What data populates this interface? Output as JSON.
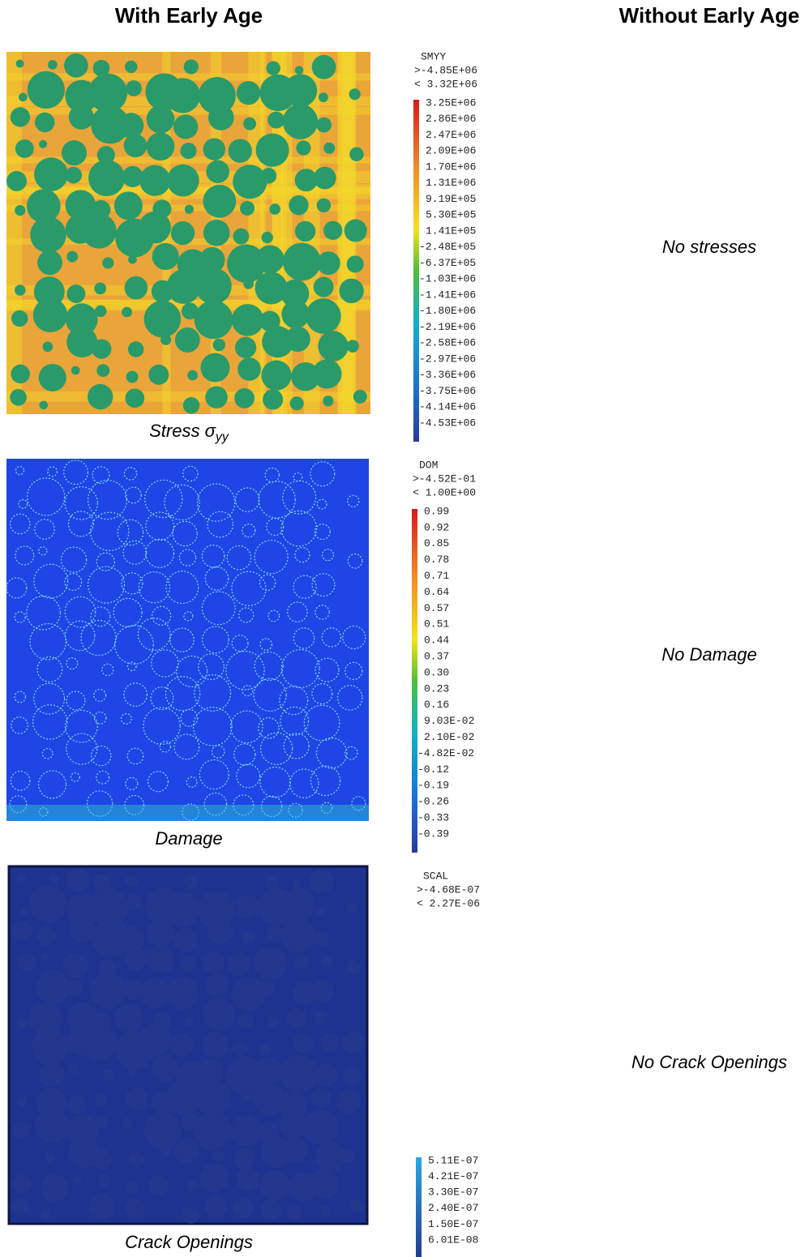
{
  "header": {
    "left": "With Early Age",
    "right": "Without Early Age"
  },
  "panels": [
    {
      "caption": {
        "text": "Stress σ",
        "subscript": "yy"
      },
      "legend": {
        "title": "SMYY",
        "max": ">-4.85E+06",
        "min": "< 3.32E+06",
        "labels": [
          "3.25E+06",
          "2.86E+06",
          "2.47E+06",
          "2.09E+06",
          "1.70E+06",
          "1.31E+06",
          "9.19E+05",
          "5.30E+05",
          "1.41E+05",
          "-2.48E+05",
          "-6.37E+05",
          "-1.03E+06",
          "-1.41E+06",
          "-1.80E+06",
          "-2.19E+06",
          "-2.58E+06",
          "-2.97E+06",
          "-3.36E+06",
          "-3.75E+06",
          "-4.14E+06",
          "-4.53E+06"
        ]
      },
      "note": "No stresses"
    },
    {
      "caption": {
        "text": "Damage"
      },
      "legend": {
        "title": "DOM",
        "max": ">-4.52E-01",
        "min": "< 1.00E+00",
        "labels": [
          "0.99",
          "0.92",
          "0.85",
          "0.78",
          "0.71",
          "0.64",
          "0.57",
          "0.51",
          "0.44",
          "0.37",
          "0.30",
          "0.23",
          "0.16",
          "9.03E-02",
          "2.10E-02",
          "-4.82E-02",
          "-0.12",
          "-0.19",
          "-0.26",
          "-0.33",
          "-0.39"
        ]
      },
      "note": "No Damage"
    },
    {
      "caption": {
        "text": "Crack Openings"
      },
      "legend": {
        "title": "SCAL",
        "max": ">-4.68E-07",
        "min": "< 2.27E-06",
        "labels": [
          "5.11E-07",
          "4.21E-07",
          "3.30E-07",
          "2.40E-07",
          "1.50E-07",
          "6.01E-08"
        ]
      },
      "note": "No Crack Openings"
    }
  ]
}
